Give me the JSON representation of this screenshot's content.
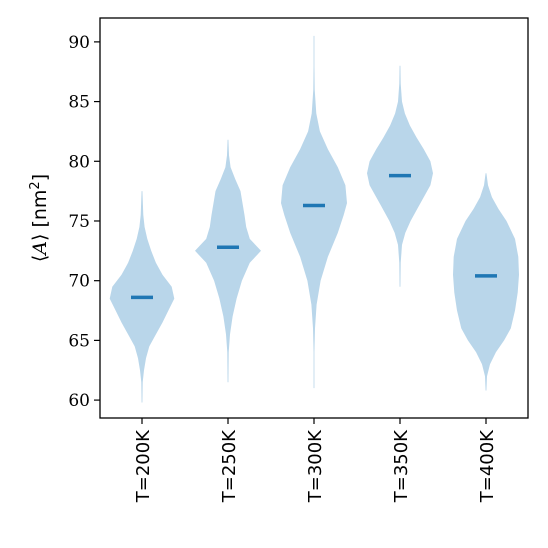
{
  "chart_data": {
    "type": "violin",
    "ylabel_mid": "[nm",
    "ylabel_unit_sup": "2",
    "ylabel_close": "]",
    "ylabel_symbol": "A",
    "ylim": [
      58.5,
      92
    ],
    "yticks": [
      60,
      65,
      70,
      75,
      80,
      85,
      90
    ],
    "categories": [
      "T=200K",
      "T=250K",
      "T=300K",
      "T=350K",
      "T=400K"
    ],
    "series": [
      {
        "category": "T=200K",
        "median": 68.6,
        "min": 59.8,
        "max": 77.5,
        "profile": [
          [
            59.8,
            0.0
          ],
          [
            61.5,
            0.02
          ],
          [
            62.5,
            0.06
          ],
          [
            63.5,
            0.12
          ],
          [
            64.5,
            0.22
          ],
          [
            65.5,
            0.42
          ],
          [
            66.5,
            0.62
          ],
          [
            67.5,
            0.8
          ],
          [
            68.5,
            0.98
          ],
          [
            69.5,
            0.9
          ],
          [
            70.5,
            0.62
          ],
          [
            71.5,
            0.42
          ],
          [
            72.5,
            0.28
          ],
          [
            73.5,
            0.16
          ],
          [
            74.5,
            0.08
          ],
          [
            75.5,
            0.04
          ],
          [
            77.5,
            0.0
          ]
        ]
      },
      {
        "category": "T=250K",
        "median": 72.8,
        "min": 61.5,
        "max": 81.8,
        "profile": [
          [
            61.5,
            0.0
          ],
          [
            64.0,
            0.02
          ],
          [
            65.5,
            0.06
          ],
          [
            67.0,
            0.14
          ],
          [
            68.5,
            0.26
          ],
          [
            70.0,
            0.42
          ],
          [
            71.5,
            0.66
          ],
          [
            72.5,
            1.0
          ],
          [
            73.5,
            0.66
          ],
          [
            74.5,
            0.55
          ],
          [
            75.5,
            0.5
          ],
          [
            76.5,
            0.44
          ],
          [
            77.5,
            0.38
          ],
          [
            78.5,
            0.22
          ],
          [
            79.5,
            0.08
          ],
          [
            80.5,
            0.03
          ],
          [
            81.8,
            0.0
          ]
        ]
      },
      {
        "category": "T=300K",
        "median": 76.3,
        "min": 61.0,
        "max": 90.5,
        "profile": [
          [
            61.0,
            0.0
          ],
          [
            64.0,
            0.01
          ],
          [
            66.0,
            0.03
          ],
          [
            68.0,
            0.08
          ],
          [
            70.0,
            0.2
          ],
          [
            72.0,
            0.42
          ],
          [
            74.0,
            0.72
          ],
          [
            75.5,
            0.9
          ],
          [
            76.5,
            1.0
          ],
          [
            78.0,
            0.95
          ],
          [
            79.5,
            0.72
          ],
          [
            81.0,
            0.42
          ],
          [
            82.5,
            0.18
          ],
          [
            84.0,
            0.07
          ],
          [
            86.0,
            0.02
          ],
          [
            88.0,
            0.008
          ],
          [
            90.5,
            0.0
          ]
        ]
      },
      {
        "category": "T=350K",
        "median": 78.8,
        "min": 69.5,
        "max": 88.0,
        "profile": [
          [
            69.5,
            0.0
          ],
          [
            71.5,
            0.02
          ],
          [
            73.0,
            0.06
          ],
          [
            74.0,
            0.16
          ],
          [
            75.0,
            0.32
          ],
          [
            76.0,
            0.52
          ],
          [
            77.0,
            0.72
          ],
          [
            78.0,
            0.92
          ],
          [
            79.0,
            1.0
          ],
          [
            80.0,
            0.92
          ],
          [
            81.0,
            0.72
          ],
          [
            82.0,
            0.5
          ],
          [
            83.0,
            0.3
          ],
          [
            84.0,
            0.15
          ],
          [
            85.0,
            0.06
          ],
          [
            86.5,
            0.02
          ],
          [
            88.0,
            0.0
          ]
        ]
      },
      {
        "category": "T=400K",
        "median": 70.4,
        "min": 60.8,
        "max": 79.0,
        "profile": [
          [
            60.8,
            0.0
          ],
          [
            62.0,
            0.03
          ],
          [
            63.0,
            0.12
          ],
          [
            64.0,
            0.3
          ],
          [
            65.0,
            0.55
          ],
          [
            66.0,
            0.75
          ],
          [
            67.5,
            0.88
          ],
          [
            69.0,
            0.96
          ],
          [
            70.5,
            1.0
          ],
          [
            72.0,
            0.98
          ],
          [
            73.5,
            0.88
          ],
          [
            75.0,
            0.62
          ],
          [
            76.0,
            0.38
          ],
          [
            77.0,
            0.18
          ],
          [
            78.0,
            0.06
          ],
          [
            79.0,
            0.0
          ]
        ]
      }
    ],
    "colors": {
      "violin_fill": "#b9d6ea",
      "median": "#1f77b4"
    },
    "grid": false,
    "legend": "none"
  }
}
